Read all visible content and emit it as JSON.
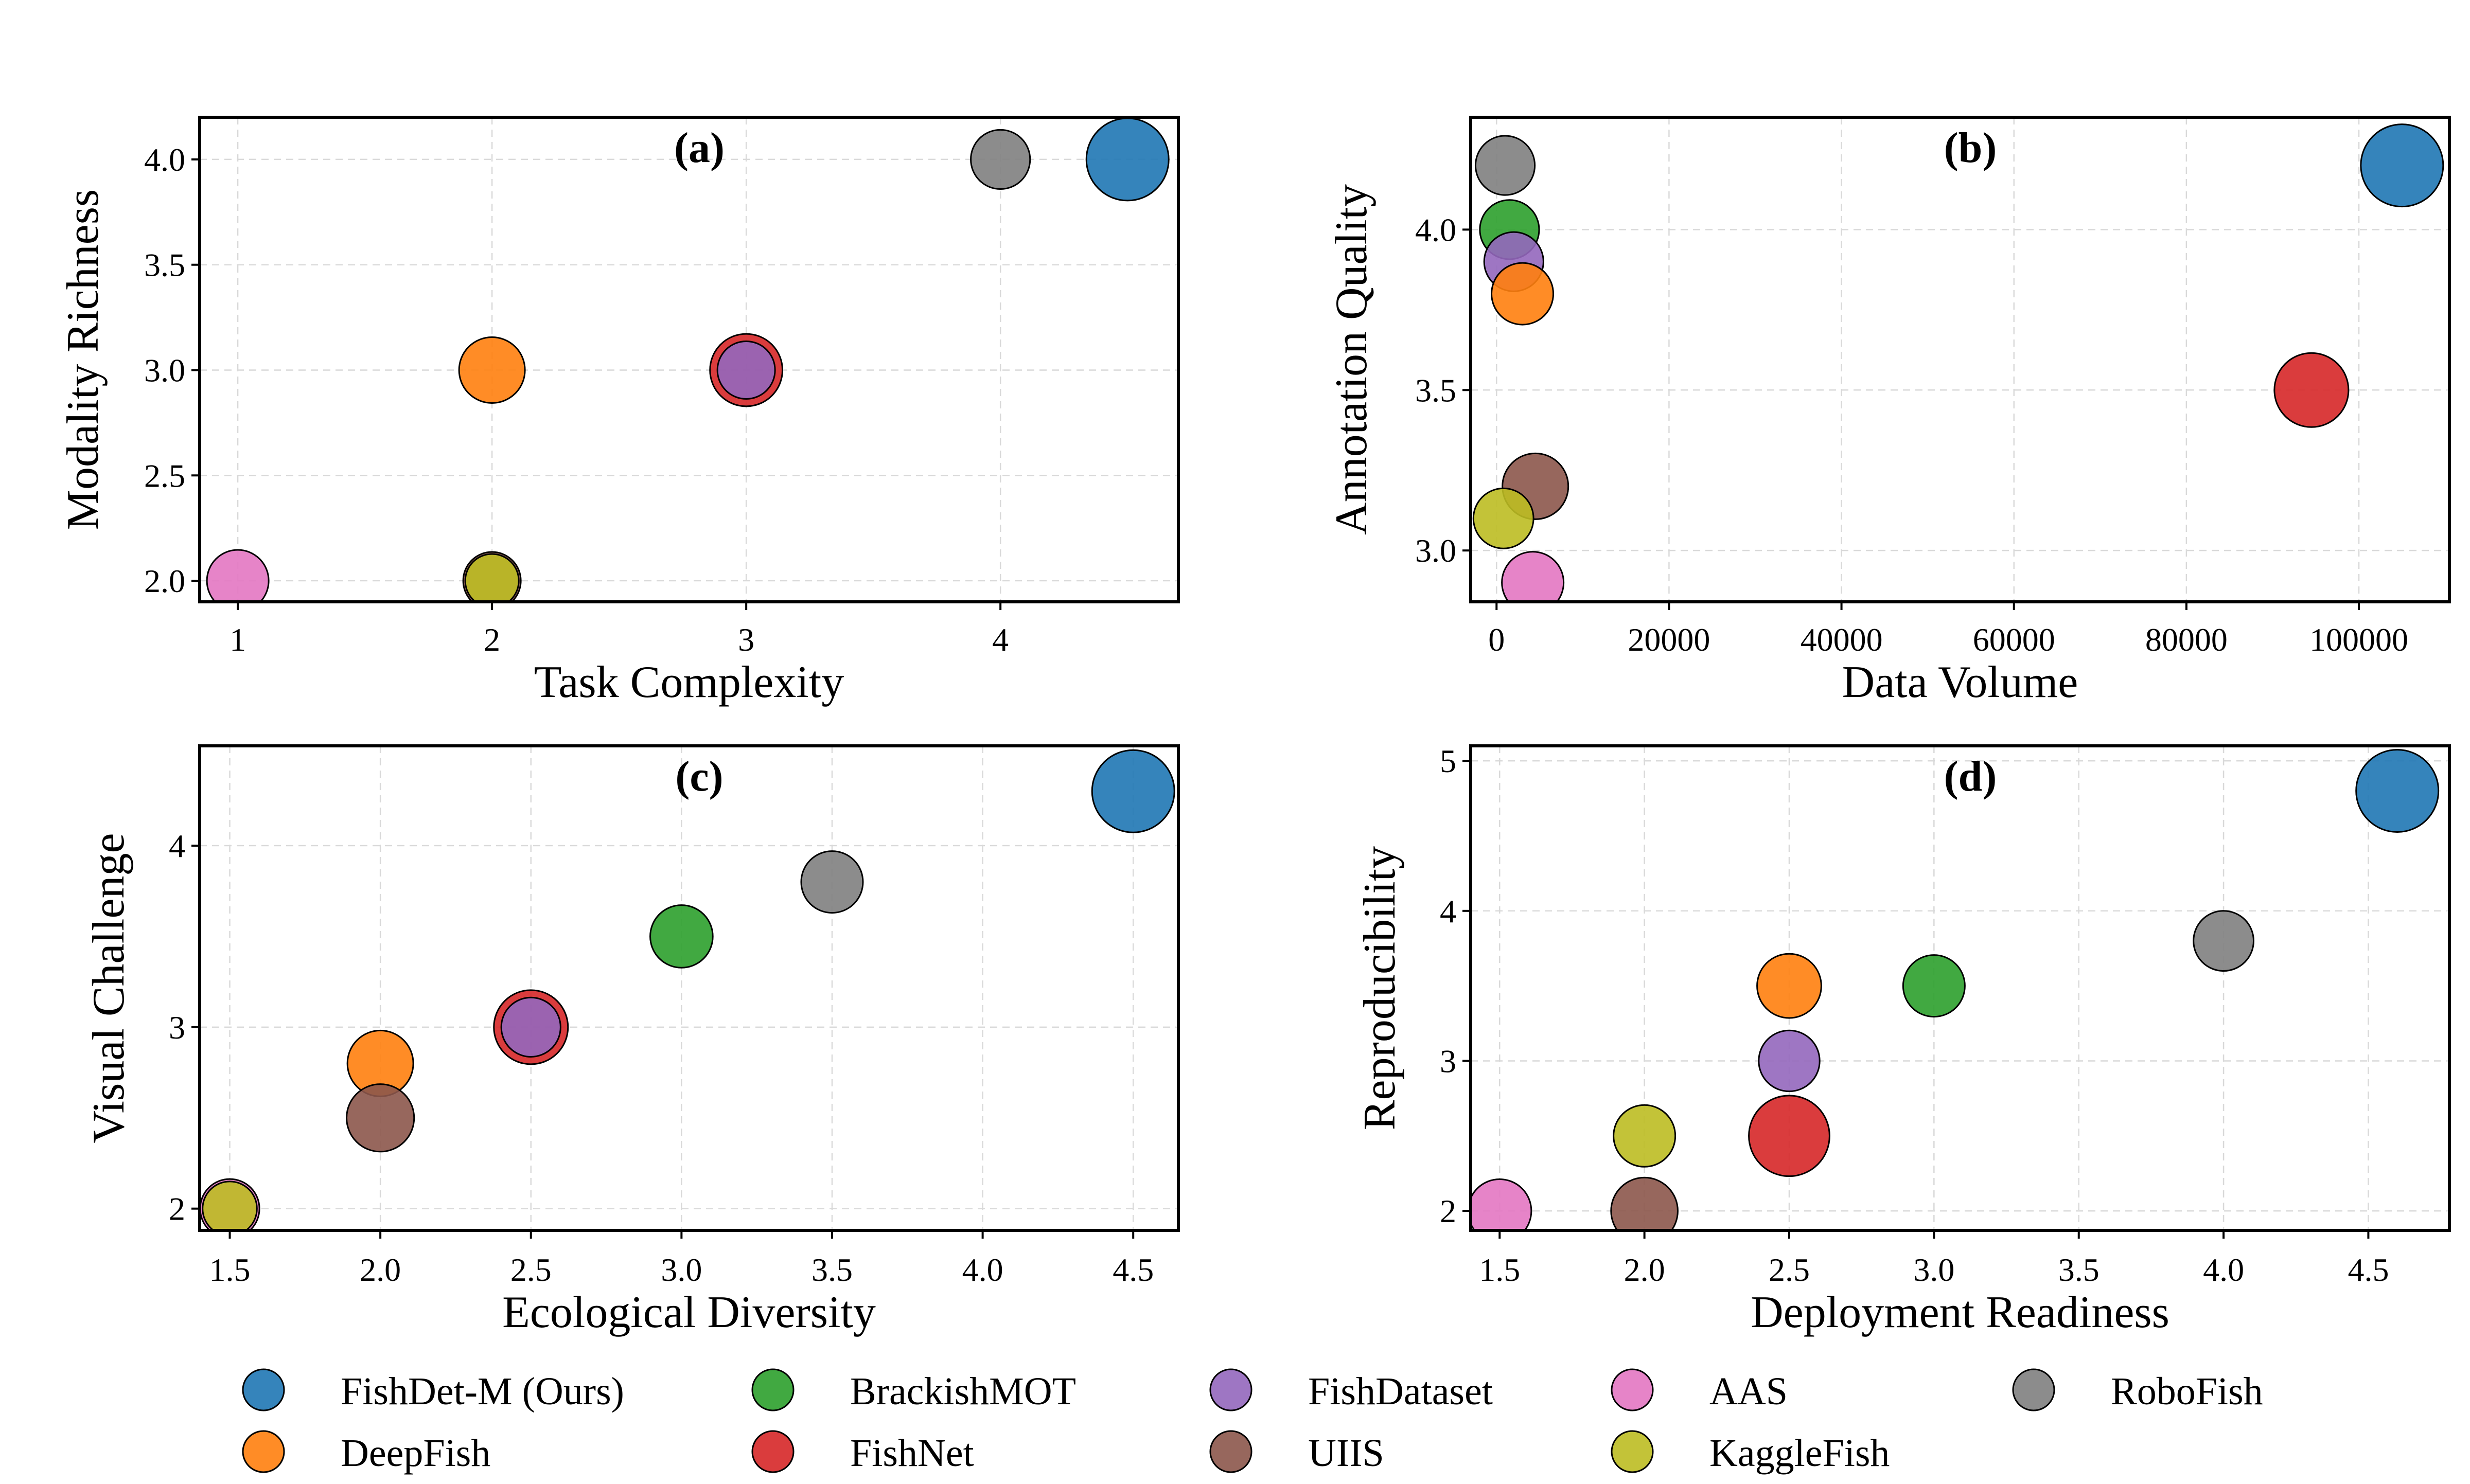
{
  "colors": {
    "FishDet-M (Ours)": "#1f77b4",
    "DeepFish": "#ff7f0e",
    "BrackishMOT": "#2ca02c",
    "FishNet": "#d62728",
    "FishDataset": "#9467bd",
    "UIIS": "#8c564b",
    "AAS": "#e377c2",
    "KaggleFish": "#bcbd22",
    "RoboFish": "#7f7f7f"
  },
  "legend": {
    "marker": "circle",
    "items": [
      "FishDet-M (Ours)",
      "DeepFish",
      "BrackishMOT",
      "FishNet",
      "FishDataset",
      "UIIS",
      "AAS",
      "KaggleFish",
      "RoboFish"
    ]
  },
  "chart_data": [
    {
      "type": "scatter",
      "title": "(a)",
      "xlabel": "Task Complexity",
      "ylabel": "Modality Richness",
      "xlim": [
        0.85,
        4.7
      ],
      "ylim": [
        1.9,
        4.2
      ],
      "xticks": [
        1,
        2,
        3,
        4
      ],
      "xtick_labels": [
        "1",
        "2",
        "3",
        "4"
      ],
      "yticks": [
        2.0,
        2.5,
        3.0,
        3.5,
        4.0
      ],
      "ytick_labels": [
        "2.0",
        "2.5",
        "3.0",
        "3.5",
        "4.0"
      ],
      "grid": true,
      "points": [
        {
          "name": "FishDet-M (Ours)",
          "x": 4.5,
          "y": 4.0,
          "size": 1.0
        },
        {
          "name": "RoboFish",
          "x": 4.0,
          "y": 4.0,
          "size": 0.72
        },
        {
          "name": "DeepFish",
          "x": 2.0,
          "y": 3.0,
          "size": 0.8
        },
        {
          "name": "FishNet",
          "x": 3.0,
          "y": 3.0,
          "size": 0.88
        },
        {
          "name": "FishDataset",
          "x": 3.0,
          "y": 3.0,
          "size": 0.7
        },
        {
          "name": "AAS",
          "x": 1.0,
          "y": 2.0,
          "size": 0.75
        },
        {
          "name": "UIIS",
          "x": 2.0,
          "y": 2.0,
          "size": 0.7
        },
        {
          "name": "KaggleFish",
          "x": 2.0,
          "y": 2.0,
          "size": 0.65
        }
      ]
    },
    {
      "type": "scatter",
      "title": "(b)",
      "xlabel": "Data Volume",
      "ylabel": "Annotation Quality",
      "xlim": [
        -3000,
        110500
      ],
      "ylim": [
        2.84,
        4.35
      ],
      "xticks": [
        0,
        20000,
        40000,
        60000,
        80000,
        100000
      ],
      "xtick_labels": [
        "0",
        "20000",
        "40000",
        "60000",
        "80000",
        "100000"
      ],
      "yticks": [
        3.0,
        3.5,
        4.0
      ],
      "ytick_labels": [
        "3.0",
        "3.5",
        "4.0"
      ],
      "grid": true,
      "points": [
        {
          "name": "FishDet-M (Ours)",
          "x": 105000,
          "y": 4.2,
          "size": 1.0
        },
        {
          "name": "RoboFish",
          "x": 1000,
          "y": 4.2,
          "size": 0.72
        },
        {
          "name": "BrackishMOT",
          "x": 1500,
          "y": 4.0,
          "size": 0.72
        },
        {
          "name": "FishDataset",
          "x": 2000,
          "y": 3.9,
          "size": 0.72
        },
        {
          "name": "DeepFish",
          "x": 3000,
          "y": 3.8,
          "size": 0.75
        },
        {
          "name": "FishNet",
          "x": 94500,
          "y": 3.5,
          "size": 0.9
        },
        {
          "name": "UIIS",
          "x": 4500,
          "y": 3.2,
          "size": 0.8
        },
        {
          "name": "KaggleFish",
          "x": 800,
          "y": 3.1,
          "size": 0.73
        },
        {
          "name": "AAS",
          "x": 4200,
          "y": 2.9,
          "size": 0.75
        }
      ]
    },
    {
      "type": "scatter",
      "title": "(c)",
      "xlabel": "Ecological Diversity",
      "ylabel": "Visual Challenge",
      "xlim": [
        1.4,
        4.65
      ],
      "ylim": [
        1.88,
        4.55
      ],
      "xticks": [
        1.5,
        2.0,
        2.5,
        3.0,
        3.5,
        4.0,
        4.5
      ],
      "xtick_labels": [
        "1.5",
        "2.0",
        "2.5",
        "3.0",
        "3.5",
        "4.0",
        "4.5"
      ],
      "yticks": [
        2,
        3,
        4
      ],
      "ytick_labels": [
        "2",
        "3",
        "4"
      ],
      "grid": true,
      "points": [
        {
          "name": "FishDet-M (Ours)",
          "x": 4.5,
          "y": 4.3,
          "size": 1.0
        },
        {
          "name": "RoboFish",
          "x": 3.5,
          "y": 3.8,
          "size": 0.75
        },
        {
          "name": "BrackishMOT",
          "x": 3.0,
          "y": 3.5,
          "size": 0.76
        },
        {
          "name": "FishNet",
          "x": 2.5,
          "y": 3.0,
          "size": 0.9
        },
        {
          "name": "FishDataset",
          "x": 2.5,
          "y": 3.0,
          "size": 0.72
        },
        {
          "name": "DeepFish",
          "x": 2.0,
          "y": 2.8,
          "size": 0.8
        },
        {
          "name": "UIIS",
          "x": 2.0,
          "y": 2.5,
          "size": 0.82
        },
        {
          "name": "AAS",
          "x": 1.5,
          "y": 2.0,
          "size": 0.72
        },
        {
          "name": "KaggleFish",
          "x": 1.5,
          "y": 2.0,
          "size": 0.66
        }
      ]
    },
    {
      "type": "scatter",
      "title": "(d)",
      "xlabel": "Deployment Readiness",
      "ylabel": "Reproducibility",
      "xlim": [
        1.4,
        4.78
      ],
      "ylim": [
        1.87,
        5.1
      ],
      "xticks": [
        1.5,
        2.0,
        2.5,
        3.0,
        3.5,
        4.0,
        4.5
      ],
      "xtick_labels": [
        "1.5",
        "2.0",
        "2.5",
        "3.0",
        "3.5",
        "4.0",
        "4.5"
      ],
      "yticks": [
        2,
        3,
        4,
        5
      ],
      "ytick_labels": [
        "2",
        "3",
        "4",
        "5"
      ],
      "grid": true,
      "points": [
        {
          "name": "FishDet-M (Ours)",
          "x": 4.6,
          "y": 4.8,
          "size": 1.0
        },
        {
          "name": "RoboFish",
          "x": 4.0,
          "y": 3.8,
          "size": 0.73
        },
        {
          "name": "BrackishMOT",
          "x": 3.0,
          "y": 3.5,
          "size": 0.75
        },
        {
          "name": "DeepFish",
          "x": 2.5,
          "y": 3.5,
          "size": 0.78
        },
        {
          "name": "FishDataset",
          "x": 2.5,
          "y": 3.0,
          "size": 0.74
        },
        {
          "name": "FishNet",
          "x": 2.5,
          "y": 2.5,
          "size": 0.98
        },
        {
          "name": "KaggleFish",
          "x": 2.0,
          "y": 2.5,
          "size": 0.75
        },
        {
          "name": "AAS",
          "x": 1.5,
          "y": 2.0,
          "size": 0.77
        },
        {
          "name": "UIIS",
          "x": 2.0,
          "y": 2.0,
          "size": 0.81
        }
      ]
    }
  ]
}
